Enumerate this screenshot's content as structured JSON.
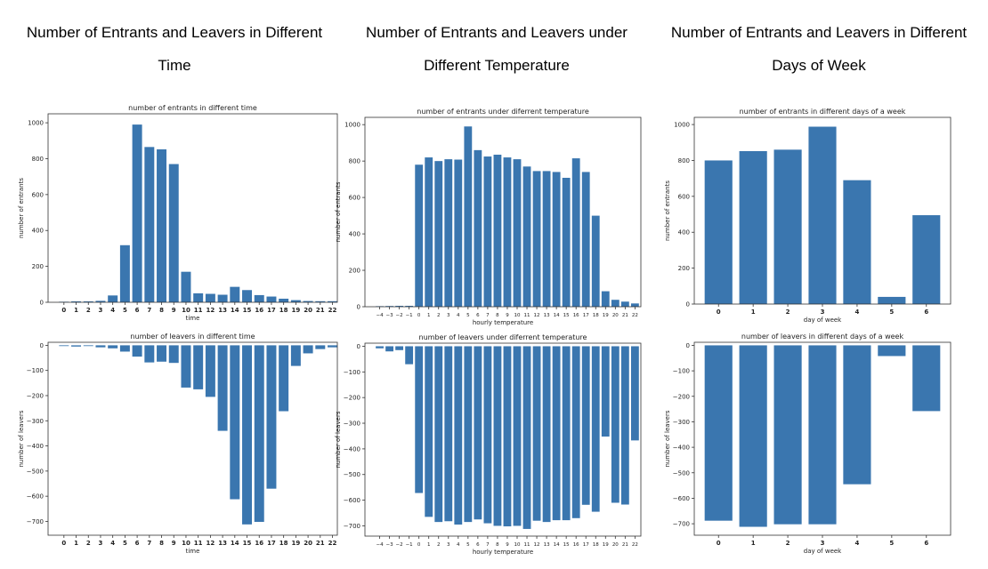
{
  "headings": [
    {
      "line1": "Number of Entrants and Leavers in Different",
      "line2": "Time"
    },
    {
      "line1": "Number of Entrants and Leavers under",
      "line2": "Different Temperature"
    },
    {
      "line1": "Number of Entrants and Leavers in Different",
      "line2": "Days of Week"
    }
  ],
  "chart_data": [
    {
      "id": "entrants-time",
      "type": "bar",
      "title": "number of entrants in different time",
      "xlabel": "time",
      "ylabel": "number of entrants",
      "bar_color": "#3a76af",
      "x_tick_labels": [
        "0",
        "1",
        "2",
        "3",
        "4",
        "5",
        "6",
        "7",
        "8",
        "9",
        "10",
        "11",
        "12",
        "13",
        "14",
        "15",
        "16",
        "17",
        "18",
        "19",
        "20",
        "21",
        "22"
      ],
      "categories": [
        0,
        1,
        2,
        3,
        4,
        5,
        6,
        7,
        8,
        9,
        10,
        11,
        12,
        13,
        14,
        15,
        16,
        17,
        18,
        19,
        20,
        21,
        22
      ],
      "values": [
        3,
        5,
        5,
        8,
        38,
        318,
        990,
        865,
        852,
        770,
        170,
        50,
        47,
        42,
        86,
        68,
        40,
        32,
        20,
        12,
        7,
        6,
        6
      ],
      "ylim": [
        0,
        1050
      ],
      "yticks": [
        0,
        200,
        400,
        600,
        800,
        1000
      ],
      "xlim": [
        -1.3,
        22.4
      ]
    },
    {
      "id": "entrants-temp",
      "type": "bar",
      "title": "number of entrants under diferrent temperature",
      "xlabel": "hourly temperature",
      "ylabel": "number of entrants",
      "bar_color": "#3a76af",
      "x_tick_labels": [
        "−4",
        "−3",
        "−2",
        "−1",
        "0",
        "1",
        "2",
        "3",
        "4",
        "5",
        "6",
        "7",
        "8",
        "9",
        "10",
        "11",
        "12",
        "13",
        "14",
        "15",
        "16",
        "17",
        "18",
        "19",
        "20",
        "21",
        "22"
      ],
      "categories": [
        -4,
        -3,
        -2,
        -1,
        0,
        1,
        2,
        3,
        4,
        5,
        6,
        7,
        8,
        9,
        10,
        11,
        12,
        13,
        14,
        15,
        16,
        17,
        18,
        19,
        20,
        21,
        22
      ],
      "values": [
        3,
        4,
        5,
        5,
        780,
        820,
        800,
        810,
        808,
        990,
        860,
        825,
        835,
        820,
        810,
        770,
        745,
        745,
        740,
        708,
        815,
        740,
        500,
        85,
        38,
        28,
        18
      ],
      "ylim": [
        0,
        1040
      ],
      "yticks": [
        0,
        200,
        400,
        600,
        800,
        1000
      ],
      "xlim": [
        -5.5,
        22.6
      ]
    },
    {
      "id": "entrants-day",
      "type": "bar",
      "title": "number of entrants in different days of a week",
      "xlabel": "day of week",
      "ylabel": "number of entrants",
      "bar_color": "#3a76af",
      "x_tick_labels": [
        "0",
        "1",
        "2",
        "3",
        "4",
        "5",
        "6"
      ],
      "categories": [
        0,
        1,
        2,
        3,
        4,
        5,
        6
      ],
      "values": [
        800,
        852,
        860,
        988,
        690,
        40,
        495
      ],
      "ylim": [
        0,
        1040
      ],
      "yticks": [
        0,
        200,
        400,
        600,
        800,
        1000
      ],
      "xlim": [
        -0.7,
        6.7
      ]
    },
    {
      "id": "leavers-time",
      "type": "bar",
      "title": "number of leavers in different time",
      "xlabel": "time",
      "ylabel": "number of leavers",
      "bar_color": "#3a76af",
      "x_tick_labels": [
        "0",
        "1",
        "2",
        "3",
        "4",
        "5",
        "6",
        "7",
        "8",
        "9",
        "10",
        "11",
        "12",
        "13",
        "14",
        "15",
        "16",
        "17",
        "18",
        "19",
        "20",
        "21",
        "22"
      ],
      "categories": [
        0,
        1,
        2,
        3,
        4,
        5,
        6,
        7,
        8,
        9,
        10,
        11,
        12,
        13,
        14,
        15,
        16,
        17,
        18,
        19,
        20,
        21,
        22
      ],
      "values": [
        -3,
        -5,
        -3,
        -8,
        -12,
        -25,
        -45,
        -68,
        -65,
        -70,
        -168,
        -175,
        -205,
        -340,
        -612,
        -712,
        -702,
        -570,
        -262,
        -82,
        -32,
        -15,
        -8
      ],
      "ylim": [
        -755,
        12
      ],
      "yticks": [
        0,
        -100,
        -200,
        -300,
        -400,
        -500,
        -600,
        -700
      ],
      "xlim": [
        -1.3,
        22.4
      ]
    },
    {
      "id": "leavers-temp",
      "type": "bar",
      "title": "number of leavers under diferrent temperature",
      "xlabel": "hourly temperature",
      "ylabel": "number of leavers",
      "bar_color": "#3a76af",
      "x_tick_labels": [
        "−4",
        "−3",
        "−2",
        "−1",
        "0",
        "1",
        "2",
        "3",
        "4",
        "5",
        "6",
        "7",
        "8",
        "9",
        "10",
        "11",
        "12",
        "13",
        "14",
        "15",
        "16",
        "17",
        "18",
        "19",
        "20",
        "21",
        "22"
      ],
      "categories": [
        -4,
        -3,
        -2,
        -1,
        0,
        1,
        2,
        3,
        4,
        5,
        6,
        7,
        8,
        9,
        10,
        11,
        12,
        13,
        14,
        15,
        16,
        17,
        18,
        19,
        20,
        21,
        22
      ],
      "values": [
        -8,
        -20,
        -15,
        -70,
        -572,
        -665,
        -685,
        -682,
        -695,
        -685,
        -675,
        -690,
        -700,
        -702,
        -700,
        -712,
        -680,
        -685,
        -678,
        -678,
        -670,
        -618,
        -645,
        -352,
        -610,
        -617,
        -367
      ],
      "ylim": [
        -740,
        12
      ],
      "yticks": [
        0,
        -100,
        -200,
        -300,
        -400,
        -500,
        -600,
        -700
      ],
      "xlim": [
        -5.5,
        22.6
      ]
    },
    {
      "id": "leavers-day",
      "type": "bar",
      "title": "number of leavers in different days of a week",
      "xlabel": "day of week",
      "ylabel": "number of leavers",
      "bar_color": "#3a76af",
      "x_tick_labels": [
        "0",
        "1",
        "2",
        "3",
        "4",
        "5",
        "6"
      ],
      "categories": [
        0,
        1,
        2,
        3,
        4,
        5,
        6
      ],
      "values": [
        -688,
        -712,
        -702,
        -702,
        -545,
        -42,
        -258
      ],
      "ylim": [
        -745,
        12
      ],
      "yticks": [
        0,
        -100,
        -200,
        -300,
        -400,
        -500,
        -600,
        -700
      ],
      "xlim": [
        -0.7,
        6.7
      ]
    }
  ]
}
